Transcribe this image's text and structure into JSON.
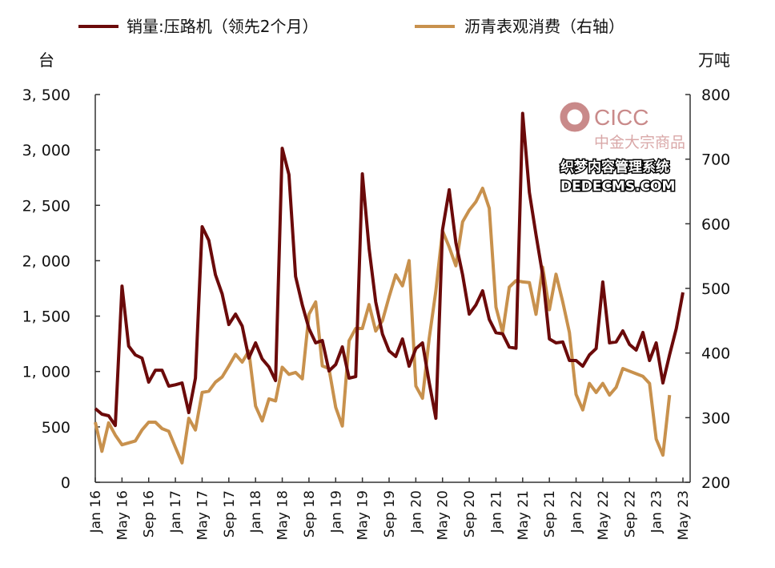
{
  "chart_data": {
    "type": "line",
    "title": "",
    "left_unit": "台",
    "right_unit": "万吨",
    "x_start": "Jan 16",
    "x_tick_labels": [
      "Jan 16",
      "May 16",
      "Sep 16",
      "Jan 17",
      "May 17",
      "Sep 17",
      "Jan 18",
      "May 18",
      "Sep 18",
      "Jan 19",
      "May 19",
      "Sep 19",
      "Jan 20",
      "May 20",
      "Sep 20",
      "Jan 21",
      "May 21",
      "Sep 21",
      "Jan 22",
      "May 22",
      "Sep 22",
      "Jan 23",
      "May 23"
    ],
    "y_left": {
      "min": 0,
      "max": 3500,
      "step": 500,
      "tick_labels": [
        "0",
        "500",
        "1, 000",
        "1, 500",
        "2, 000",
        "2, 500",
        "3, 000",
        "3, 500"
      ]
    },
    "y_right": {
      "min": 200,
      "max": 800,
      "step": 100,
      "tick_labels": [
        "200",
        "300",
        "400",
        "500",
        "600",
        "700",
        "800"
      ]
    },
    "legend_position": "top",
    "series": [
      {
        "name": "销量:压路机（领先2个月）",
        "axis": "left",
        "color": "#6b0a0a",
        "values": [
          665,
          615,
          600,
          513,
          1771,
          1229,
          1150,
          1121,
          904,
          1012,
          1012,
          868,
          880,
          897,
          629,
          940,
          2307,
          2184,
          1873,
          1700,
          1424,
          1518,
          1410,
          1121,
          1258,
          1113,
          1041,
          918,
          3015,
          2777,
          1858,
          1600,
          1388,
          1258,
          1280,
          1005,
          1063,
          1222,
          940,
          954,
          2784,
          2111,
          1627,
          1338,
          1186,
          1135,
          1294,
          1048,
          1207,
          1258,
          904,
          578,
          2278,
          2640,
          2162,
          1873,
          1518,
          1600,
          1728,
          1470,
          1350,
          1340,
          1220,
          1210,
          3330,
          2617,
          2234,
          1873,
          1294,
          1258,
          1267,
          1099,
          1099,
          1048,
          1150,
          1207,
          1808,
          1258,
          1267,
          1367,
          1244,
          1193,
          1352,
          1099,
          1258,
          897,
          1150,
          1388,
          1714
        ]
      },
      {
        "name": "沥青表观消费（右轴）",
        "axis": "right",
        "color": "#c8914d",
        "values": [
          293,
          248,
          292,
          273,
          258,
          261,
          264,
          281,
          293,
          293,
          283,
          279,
          254,
          230,
          299,
          281,
          339,
          341,
          355,
          363,
          380,
          398,
          386,
          403,
          318,
          295,
          329,
          326,
          378,
          367,
          370,
          360,
          460,
          479,
          380,
          376,
          316,
          287,
          419,
          438,
          438,
          475,
          434,
          450,
          487,
          521,
          504,
          543,
          349,
          330,
          422,
          496,
          589,
          564,
          535,
          603,
          621,
          634,
          655,
          624,
          471,
          432,
          502,
          512,
          510,
          509,
          460,
          533,
          467,
          522,
          479,
          432,
          336,
          312,
          353,
          339,
          353,
          335,
          347,
          376,
          372,
          368,
          364,
          353,
          267,
          242,
          335
        ]
      }
    ]
  },
  "watermark": {
    "logo_text": "CICC",
    "sub_text": "中金大宗商品",
    "site_cn": "织梦内容管理系统",
    "site_en": "DEDECMS.COM"
  }
}
